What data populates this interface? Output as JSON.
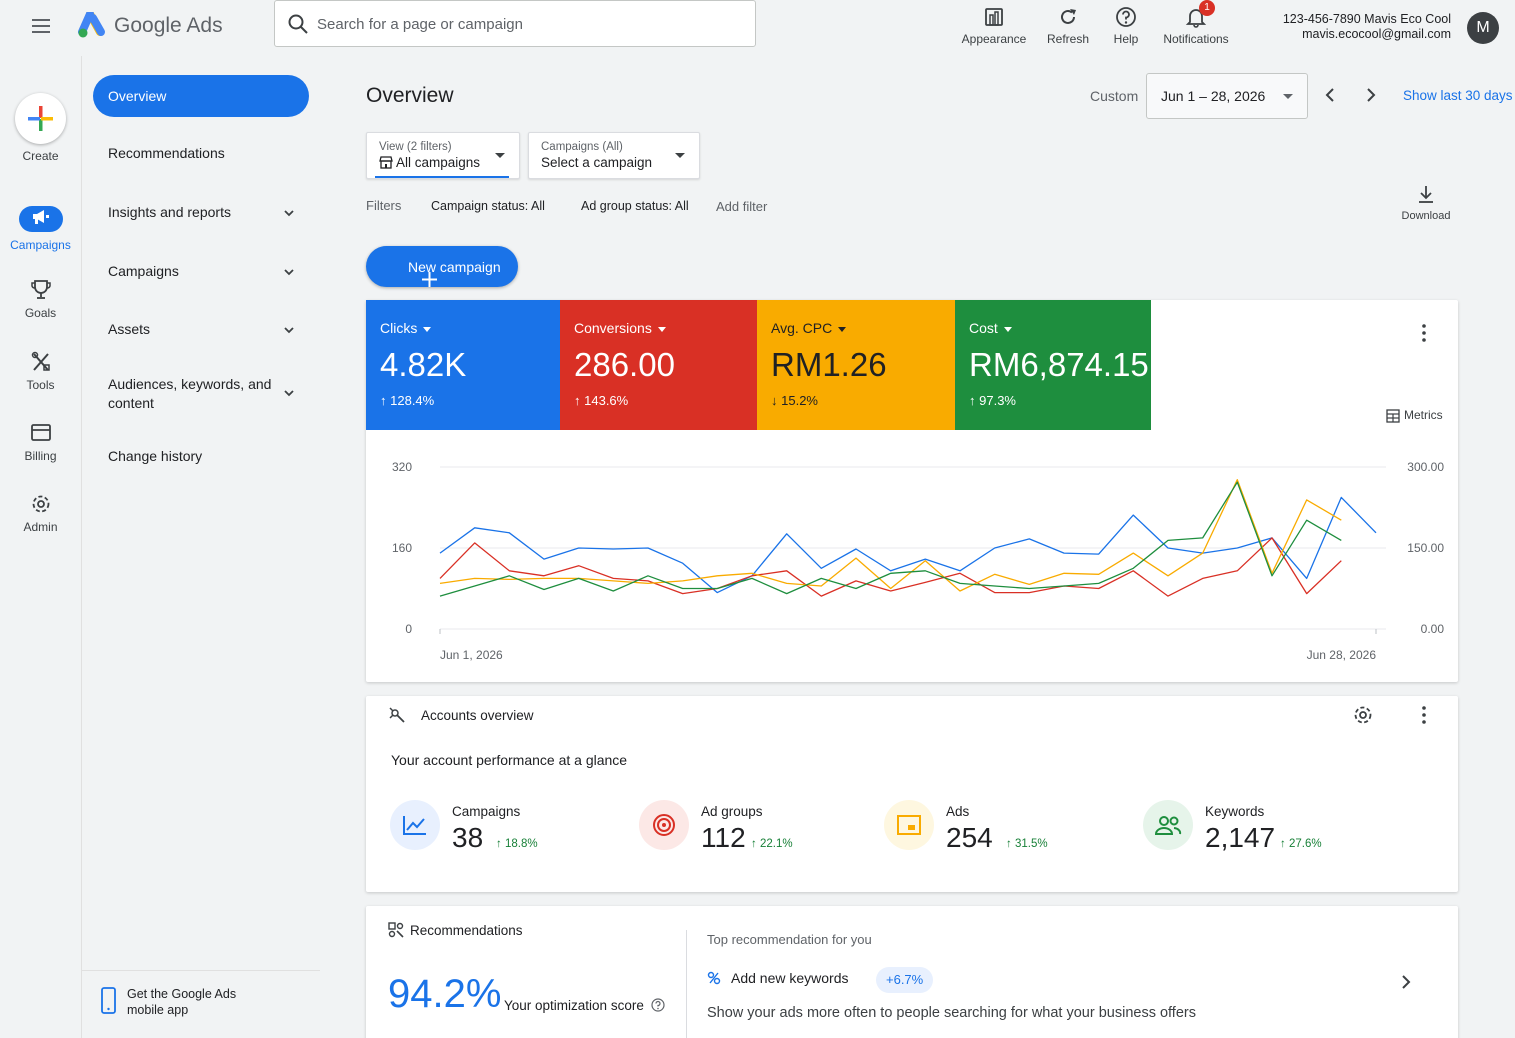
{
  "header": {
    "app_name": "Google Ads",
    "search_placeholder": "Search for a page or campaign",
    "tools": [
      {
        "label": "Appearance",
        "icon": "appearance-icon"
      },
      {
        "label": "Refresh",
        "icon": "refresh-icon"
      },
      {
        "label": "Help",
        "icon": "help-icon"
      },
      {
        "label": "Notifications",
        "icon": "bell-icon",
        "badge": "1"
      }
    ],
    "account_line1": "123-456-7890 Mavis Eco Cool",
    "account_line2": "mavis.ecocool@gmail.com",
    "avatar_letter": "M"
  },
  "rail": {
    "create": "Create",
    "items": [
      {
        "label": "Campaigns",
        "icon": "megaphone-icon",
        "active": true
      },
      {
        "label": "Goals",
        "icon": "trophy-icon"
      },
      {
        "label": "Tools",
        "icon": "tools-icon"
      },
      {
        "label": "Billing",
        "icon": "credit-card-icon"
      },
      {
        "label": "Admin",
        "icon": "gear-icon"
      }
    ]
  },
  "sidebar": {
    "items": [
      {
        "label": "Overview"
      },
      {
        "label": "Recommendations"
      },
      {
        "label": "Insights and reports"
      },
      {
        "label": "Campaigns"
      },
      {
        "label": "Assets"
      },
      {
        "label": "Audiences, keywords, and content"
      },
      {
        "label": "Change history"
      }
    ],
    "mobile_app_line1": "Get the Google Ads",
    "mobile_app_line2": "mobile app"
  },
  "main": {
    "title": "Overview",
    "date_mode": "Custom",
    "date_range": "Jun 1 – 28, 2026",
    "show_last": "Show last 30 days",
    "view_filter_small": "View (2 filters)",
    "view_filter_value": "All campaigns",
    "campaign_filter_small": "Campaigns (All)",
    "campaign_filter_value": "Select a campaign",
    "filters_label": "Filters",
    "chips": [
      "Campaign status: All",
      "Ad group status: All"
    ],
    "add_filter": "Add filter",
    "download": "Download",
    "new_campaign": "New campaign",
    "metrics_label": "Metrics"
  },
  "metrics": [
    {
      "name": "Clicks",
      "value": "4.82K",
      "delta": "128.4%",
      "direction": "up",
      "color": "#1a73e8"
    },
    {
      "name": "Conversions",
      "value": "286.00",
      "delta": "143.6%",
      "direction": "up",
      "color": "#d93025"
    },
    {
      "name": "Avg. CPC",
      "value": "RM1.26",
      "delta": "15.2%",
      "direction": "down",
      "color": "#f9ab00"
    },
    {
      "name": "Cost",
      "value": "RM6,874.15",
      "delta": "97.3%",
      "direction": "up",
      "color": "#1e8e3e"
    }
  ],
  "chart_data": {
    "type": "line",
    "x_start": "Jun 1, 2026",
    "x_end": "Jun 28, 2026",
    "left_ticks": [
      "320",
      "160",
      "0"
    ],
    "right_ticks": [
      "300.00",
      "150.00",
      "0.00"
    ],
    "ylim": [
      0,
      320
    ],
    "series": [
      {
        "color": "#1a73e8",
        "values": [
          150,
          200,
          190,
          138,
          160,
          158,
          160,
          130,
          72,
          105,
          188,
          120,
          158,
          115,
          138,
          115,
          160,
          178,
          150,
          148,
          225,
          160,
          150,
          160,
          180,
          100,
          260,
          190
        ]
      },
      {
        "color": "#d93025",
        "values": [
          100,
          170,
          115,
          105,
          125,
          100,
          95,
          70,
          80,
          105,
          115,
          65,
          95,
          75,
          92,
          110,
          72,
          72,
          85,
          80,
          115,
          65,
          100,
          115,
          180,
          70,
          135,
          null
        ]
      },
      {
        "color": "#f9ab00",
        "values": [
          90,
          100,
          98,
          100,
          100,
          95,
          90,
          95,
          105,
          110,
          90,
          85,
          140,
          80,
          135,
          75,
          108,
          88,
          110,
          108,
          150,
          105,
          150,
          295,
          110,
          255,
          215,
          null
        ]
      },
      {
        "color": "#1e8e3e",
        "values": [
          65,
          85,
          105,
          78,
          100,
          75,
          105,
          80,
          80,
          100,
          70,
          100,
          80,
          110,
          115,
          90,
          85,
          80,
          85,
          90,
          120,
          175,
          180,
          290,
          105,
          215,
          175,
          null
        ]
      }
    ]
  },
  "accounts_overview": {
    "title": "Accounts overview",
    "subtitle": "Your account performance at a glance",
    "stats": [
      {
        "name": "Campaigns",
        "value": "38",
        "delta": "18.8%",
        "icon": "trend-chart-icon",
        "color": "#1a73e8",
        "bg": "#e8f0fe"
      },
      {
        "name": "Ad groups",
        "value": "112",
        "delta": "22.1%",
        "icon": "target-icon",
        "color": "#d93025",
        "bg": "#fce8e6"
      },
      {
        "name": "Ads",
        "value": "254",
        "delta": "31.5%",
        "icon": "ad-card-icon",
        "color": "#f9ab00",
        "bg": "#fef7e0"
      },
      {
        "name": "Keywords",
        "value": "2,147",
        "delta": "27.6%",
        "icon": "people-icon",
        "color": "#1e8e3e",
        "bg": "#e6f4ea"
      }
    ]
  },
  "recommendations": {
    "title": "Recommendations",
    "score": "94.2%",
    "score_label": "Your optimization score",
    "top_label": "Top recommendation for you",
    "action": "Add new keywords",
    "badge": "+6.7%",
    "description": "Show your ads more often to people searching for what your business offers"
  }
}
